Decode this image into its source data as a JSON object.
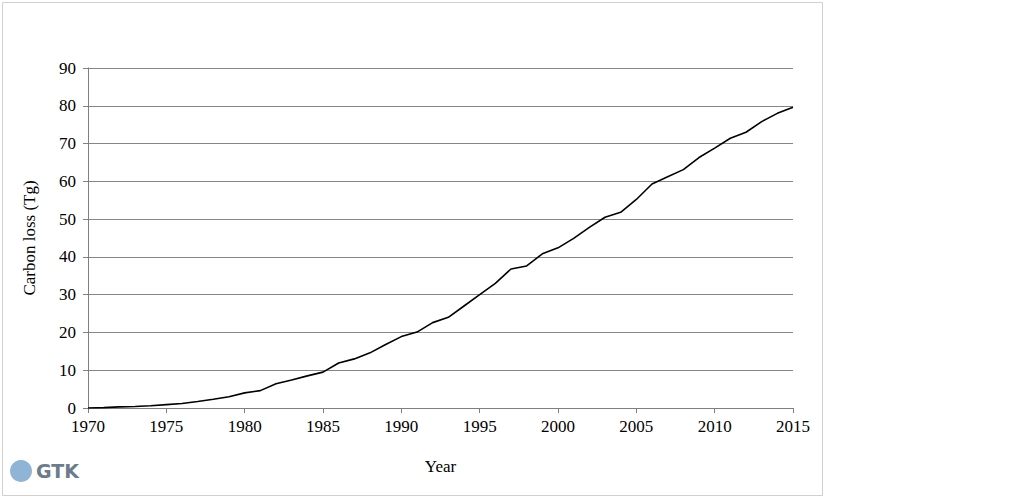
{
  "chart_data": {
    "type": "line",
    "x_label": "Year",
    "y_label": "Carbon loss (Tg)",
    "logo": "GTK",
    "x": [
      1970,
      1971,
      1972,
      1973,
      1974,
      1975,
      1976,
      1977,
      1978,
      1979,
      1980,
      1981,
      1982,
      1983,
      1984,
      1985,
      1986,
      1987,
      1988,
      1989,
      1990,
      1991,
      1992,
      1993,
      1994,
      1995,
      1996,
      1997,
      1998,
      1999,
      2000,
      2001,
      2002,
      2003,
      2004,
      2005,
      2006,
      2007,
      2008,
      2009,
      2010,
      2011,
      2012,
      2013,
      2014,
      2015
    ],
    "values": [
      0,
      0.1,
      0.3,
      0.4,
      0.6,
      0.9,
      1.2,
      1.7,
      2.3,
      3.0,
      4.0,
      4.6,
      6.4,
      7.4,
      8.5,
      9.5,
      11.9,
      13.0,
      14.6,
      16.8,
      18.9,
      20.1,
      22.6,
      24.0,
      27.0,
      30.0,
      33.0,
      36.8,
      37.6,
      40.8,
      42.4,
      44.9,
      47.8,
      50.5,
      51.8,
      55.2,
      59.3,
      61.2,
      63.1,
      66.3,
      68.8,
      71.4,
      73.0,
      75.8,
      78.0,
      79.6
    ],
    "color": "#000000",
    "xlim": [
      1970,
      2015
    ],
    "xticks": [
      1970,
      1975,
      1980,
      1985,
      1990,
      1995,
      2000,
      2005,
      2010,
      2015
    ],
    "ylim": [
      0,
      90
    ],
    "yticks": [
      0,
      10,
      20,
      30,
      40,
      50,
      60,
      70,
      80,
      90
    ],
    "grid": true
  }
}
